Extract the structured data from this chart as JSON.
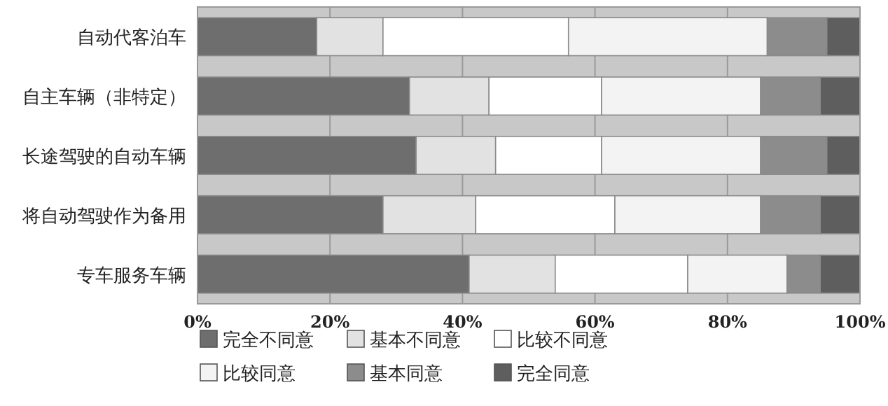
{
  "chart_data": {
    "type": "bar",
    "orientation": "horizontal",
    "stacked": true,
    "categories": [
      "自动代客泊车",
      "自主车辆（非特定）",
      "长途驾驶的自动车辆",
      "将自动驾驶作为备用",
      "专车服务车辆"
    ],
    "series": [
      {
        "name": "完全不同意",
        "color": "#6e6e6e",
        "values": [
          18,
          32,
          33,
          28,
          41
        ]
      },
      {
        "name": "基本不同意",
        "color": "#e2e2e2",
        "values": [
          10,
          12,
          12,
          14,
          13
        ]
      },
      {
        "name": "比较不同意",
        "color": "#ffffff",
        "values": [
          28,
          17,
          16,
          21,
          20
        ]
      },
      {
        "name": "比较同意",
        "color": "#f3f3f3",
        "values": [
          30,
          24,
          24,
          22,
          15
        ]
      },
      {
        "name": "基本同意",
        "color": "#8c8c8c",
        "values": [
          9,
          9,
          10,
          9,
          5
        ]
      },
      {
        "name": "完全同意",
        "color": "#5e5e5e",
        "values": [
          5,
          6,
          5,
          6,
          6
        ]
      }
    ],
    "xlim": [
      0,
      100
    ],
    "xticks": [
      {
        "value": 0,
        "label": "0%"
      },
      {
        "value": 20,
        "label": "20%"
      },
      {
        "value": 40,
        "label": "40%"
      },
      {
        "value": 60,
        "label": "60%"
      },
      {
        "value": 80,
        "label": "80%"
      },
      {
        "value": 100,
        "label": "100%"
      }
    ],
    "grid": "x",
    "legend": "bottom"
  }
}
